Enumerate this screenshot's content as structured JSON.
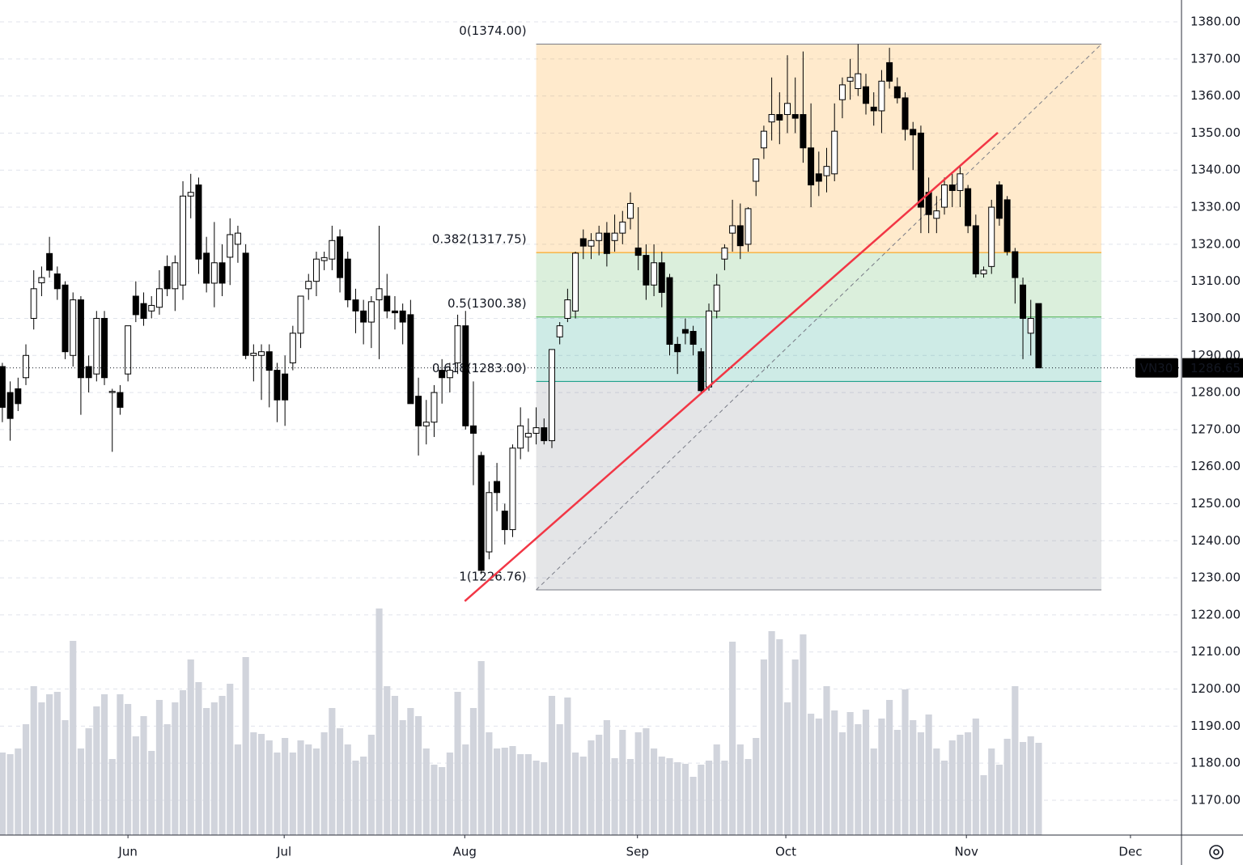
{
  "chart_data": {
    "type": "candlestick",
    "symbol": "VN30",
    "last_price": 1286.65,
    "categories": [
      null,
      null,
      null,
      null,
      null,
      null,
      null,
      null,
      null,
      null,
      null,
      null,
      null,
      null,
      null,
      null,
      null,
      null,
      null,
      null,
      null,
      null,
      null,
      null,
      null,
      null,
      null,
      null,
      null,
      null,
      null,
      null,
      null,
      null,
      null,
      null,
      null,
      null,
      null,
      null,
      null,
      null,
      null,
      null,
      null,
      null,
      null,
      null,
      null,
      null,
      null,
      null,
      null,
      null,
      null,
      null,
      null,
      null,
      null,
      null,
      null,
      null,
      null,
      null,
      null,
      null,
      null,
      null,
      null,
      null,
      null,
      null,
      null,
      null,
      null,
      null,
      null,
      null,
      null,
      null,
      null,
      null,
      null,
      null,
      null,
      null,
      null,
      null,
      null,
      null,
      null,
      null,
      null,
      null,
      null,
      null,
      null,
      null,
      null,
      null,
      null,
      null,
      null,
      null,
      null,
      null,
      null,
      null,
      null,
      null,
      null,
      null,
      null,
      null,
      null,
      null,
      null,
      null,
      null,
      null,
      null,
      null,
      null,
      null,
      null,
      null,
      null,
      null,
      null,
      null,
      null,
      null,
      null
    ],
    "open": [
      1287,
      1280,
      1281,
      1284,
      1300,
      1309.6,
      1317.5,
      1312,
      1309,
      1290,
      1305,
      1287,
      1285,
      1300,
      1280,
      1280,
      1285,
      1306,
      1304,
      1302,
      1303,
      1314,
      1308,
      1309,
      1333,
      1336,
      1317.6,
      1309.5,
      1315,
      1316.5,
      1320,
      1317.6,
      1290,
      1290,
      1291,
      1286,
      1285,
      1288,
      1296,
      1308,
      1310,
      1315.6,
      1316,
      1322,
      1316,
      1305,
      1302,
      1299,
      1305,
      1306,
      1302,
      1302,
      1301,
      1279,
      1271,
      1272,
      1286,
      1284,
      1288,
      1298,
      1271,
      1263,
      1237,
      1256,
      1248,
      1243,
      1265,
      1268,
      1269,
      1270.5,
      1267,
      1295,
      1300,
      1302,
      1321.5,
      1319.5,
      1321,
      1323,
      1321,
      1323,
      1327,
      1319,
      1317,
      1309,
      1315,
      1311,
      1293,
      1297,
      1296.5,
      1291,
      1281.5,
      1302,
      1316,
      1323,
      1325,
      1320,
      1337,
      1346,
      1353,
      1355,
      1355,
      1355,
      1355,
      1346,
      1339,
      1338.5,
      1339,
      1359,
      1364,
      1362,
      1362.5,
      1357,
      1356,
      1369,
      1362.5,
      1359.5,
      1351,
      1350,
      1334,
      1327,
      1330,
      1336,
      1334.5,
      1335,
      1325,
      1312,
      1314,
      1336,
      1332,
      1318,
      1309,
      1296,
      1304
    ],
    "high": [
      1288,
      1283,
      1284,
      1293,
      1313,
      1314,
      1322,
      1314,
      1310,
      1307,
      1306,
      1290,
      1302,
      1302,
      1281,
      1282,
      1298,
      1310,
      1307,
      1306,
      1313,
      1317,
      1317,
      1337,
      1339,
      1338,
      1322,
      1326,
      1320,
      1327,
      1325,
      1320,
      1293,
      1293,
      1293,
      1288,
      1290,
      1298,
      1306,
      1312,
      1318,
      1318,
      1325,
      1324,
      1318,
      1308,
      1305,
      1306,
      1325,
      1312,
      1306,
      1304,
      1305,
      1284,
      1278,
      1282,
      1289,
      1288,
      1301,
      1302,
      1283,
      1264,
      1256,
      1261,
      1250,
      1266,
      1276,
      1273,
      1276,
      1273,
      1291.6,
      1299,
      1308,
      1318,
      1324,
      1323,
      1325,
      1326,
      1328,
      1329,
      1334,
      1330,
      1320,
      1320,
      1318,
      1312,
      1295,
      1300,
      1298,
      1292,
      1304,
      1312,
      1320,
      1332,
      1331,
      1330,
      1343,
      1352,
      1365,
      1361,
      1371,
      1365,
      1372,
      1358,
      1345,
      1346,
      1358,
      1365,
      1370,
      1374,
      1366,
      1361,
      1367,
      1373,
      1365,
      1361,
      1353,
      1352,
      1338,
      1333,
      1338,
      1339,
      1341,
      1336,
      1328,
      1314,
      1332,
      1337,
      1333,
      1319,
      1311,
      1305,
      1304
    ],
    "low": [
      1272,
      1267,
      1275,
      1282,
      1297,
      1306,
      1311,
      1305,
      1289,
      1287,
      1274,
      1280,
      1283,
      1282,
      1264,
      1274,
      1283,
      1299,
      1298,
      1300,
      1301,
      1306,
      1302,
      1305,
      1327,
      1312,
      1307,
      1303,
      1306,
      1309,
      1315,
      1289,
      1283,
      1278,
      1276,
      1272,
      1271,
      1286,
      1292,
      1305,
      1306,
      1313,
      1313,
      1307,
      1303,
      1296,
      1293,
      1292,
      1289,
      1300,
      1297,
      1293,
      1277,
      1263,
      1266,
      1268,
      1277,
      1280,
      1285,
      1270,
      1255,
      1231,
      1235,
      1248,
      1239,
      1241,
      1262,
      1264,
      1266,
      1266,
      1265,
      1293,
      1299,
      1300,
      1316,
      1316,
      1317,
      1314,
      1318,
      1320,
      1324,
      1313,
      1305,
      1306,
      1303,
      1290,
      1285,
      1293,
      1290,
      1280,
      1280.5,
      1300,
      1313,
      1318,
      1316,
      1318,
      1333,
      1343,
      1348,
      1347,
      1350,
      1350,
      1342,
      1330,
      1333,
      1334,
      1337,
      1354,
      1359,
      1360,
      1355,
      1352,
      1350,
      1362,
      1358,
      1348,
      1340,
      1323,
      1323,
      1323,
      1328,
      1330,
      1330,
      1323,
      1311,
      1311,
      1312,
      1325,
      1317,
      1304,
      1289,
      1290,
      1286.65
    ],
    "close": [
      1276,
      1273,
      1277,
      1290,
      1308,
      1311,
      1313,
      1308,
      1291,
      1305,
      1284,
      1284,
      1300,
      1284,
      1280.3,
      1276,
      1298,
      1301,
      1300,
      1303.5,
      1308,
      1308,
      1315,
      1333,
      1334,
      1316,
      1309.5,
      1315,
      1309.5,
      1322.6,
      1323,
      1290,
      1290.6,
      1291,
      1286,
      1278,
      1278,
      1296,
      1306,
      1310,
      1316,
      1316.4,
      1321,
      1311,
      1305,
      1302,
      1299,
      1304.5,
      1308,
      1302,
      1301.5,
      1299,
      1277,
      1271,
      1272,
      1280,
      1284,
      1286,
      1298,
      1271,
      1269,
      1232,
      1253,
      1253,
      1243,
      1265,
      1271,
      1269,
      1270.5,
      1267,
      1291.6,
      1298,
      1305,
      1317.6,
      1319.5,
      1321,
      1323,
      1317.5,
      1323,
      1326,
      1331,
      1317,
      1309,
      1315,
      1307,
      1293,
      1291,
      1296,
      1293,
      1280.5,
      1302,
      1309,
      1319,
      1325,
      1319.6,
      1329.6,
      1343,
      1350.5,
      1355,
      1353.5,
      1358,
      1354,
      1346,
      1336,
      1337,
      1341,
      1350.5,
      1363,
      1365,
      1366,
      1358,
      1356,
      1364,
      1364,
      1359.5,
      1351,
      1349.5,
      1330,
      1328,
      1329,
      1336,
      1334.5,
      1339,
      1325,
      1312,
      1313,
      1330,
      1327,
      1318,
      1311,
      1300,
      1300,
      1286.65
    ],
    "volume": [
      102,
      100,
      107,
      137,
      184,
      164,
      174,
      177,
      142,
      240,
      107,
      132,
      159,
      174,
      94,
      174,
      162,
      122,
      147,
      104,
      167,
      137,
      164,
      179,
      217,
      189,
      157,
      164,
      172,
      187,
      112,
      220,
      127,
      125,
      117,
      102,
      120,
      102,
      117,
      112,
      107,
      127,
      157,
      132,
      112,
      92,
      97,
      124,
      280,
      184,
      172,
      142,
      157,
      147,
      107,
      87,
      84,
      102,
      177,
      112,
      157,
      215,
      127,
      107,
      108,
      110,
      100,
      100,
      92,
      90,
      172,
      137,
      170,
      102,
      97,
      117,
      124,
      142,
      95,
      130,
      94,
      127,
      132,
      107,
      97,
      95,
      90,
      88,
      72,
      87,
      92,
      112,
      92,
      239,
      112,
      94,
      120,
      217,
      252,
      242,
      164,
      217,
      248,
      150,
      144,
      184,
      154,
      127,
      152,
      137,
      155,
      107,
      144,
      167,
      130,
      180,
      142,
      127,
      149,
      107,
      92,
      117,
      124,
      127,
      144,
      74,
      107,
      87,
      119,
      184,
      115,
      122,
      114
    ],
    "volume_ylim": [
      0,
      1032
    ],
    "volume_color": "#d1d4dc",
    "up_color": "#ffffff",
    "down_color": "#000000",
    "wick_color": "#000000",
    "xlim": [
      -0.3,
      150.2
    ],
    "xticks": [
      {
        "value": 16,
        "label": "Jun"
      },
      {
        "value": 35.9,
        "label": "Jul"
      },
      {
        "value": 58.9,
        "label": "Aug"
      },
      {
        "value": 80.9,
        "label": "Sep"
      },
      {
        "value": 99.8,
        "label": "Oct"
      },
      {
        "value": 122.8,
        "label": "Nov"
      },
      {
        "value": 143.7,
        "label": "Dec"
      }
    ],
    "ylim": [
      1160.6,
      1385.9
    ],
    "yticks": [
      {
        "value": 1380,
        "label": "1380.00"
      },
      {
        "value": 1370,
        "label": "1370.00"
      },
      {
        "value": 1360,
        "label": "1360.00"
      },
      {
        "value": 1350,
        "label": "1350.00"
      },
      {
        "value": 1340,
        "label": "1340.00"
      },
      {
        "value": 1330,
        "label": "1330.00"
      },
      {
        "value": 1320,
        "label": "1320.00"
      },
      {
        "value": 1310,
        "label": "1310.00"
      },
      {
        "value": 1300,
        "label": "1300.00"
      },
      {
        "value": 1290,
        "label": "1290.00"
      },
      {
        "value": 1280,
        "label": "1280.00"
      },
      {
        "value": 1270,
        "label": "1270.00"
      },
      {
        "value": 1260,
        "label": "1260.00"
      },
      {
        "value": 1250,
        "label": "1250.00"
      },
      {
        "value": 1240,
        "label": "1240.00"
      },
      {
        "value": 1230,
        "label": "1230.00"
      },
      {
        "value": 1220,
        "label": "1220.00"
      },
      {
        "value": 1210,
        "label": "1210.00"
      },
      {
        "value": 1200,
        "label": "1200.00"
      },
      {
        "value": 1190,
        "label": "1190.00"
      },
      {
        "value": 1180,
        "label": "1180.00"
      },
      {
        "value": 1170,
        "label": "1170.00"
      }
    ],
    "grid": true,
    "fib": {
      "x": [
        68,
        140
      ],
      "levels": [
        {
          "value": 1374,
          "label": "0(1374.00)",
          "color": "#787b86"
        },
        {
          "value": 1317.75,
          "label": "0.382(1317.75)",
          "color": "#ff9800"
        },
        {
          "value": 1300.38,
          "label": "0.5(1300.38)",
          "color": "#4caf50"
        },
        {
          "value": 1283,
          "label": "0.618(1283.00)",
          "color": "#089981"
        },
        {
          "value": 1226.76,
          "label": "1(1226.76)",
          "color": "#787b86"
        }
      ]
    },
    "trend_line": {
      "color": "#f23645",
      "x": [
        58.9,
        126.8
      ],
      "y": [
        1223.7,
        1350.1
      ]
    }
  }
}
